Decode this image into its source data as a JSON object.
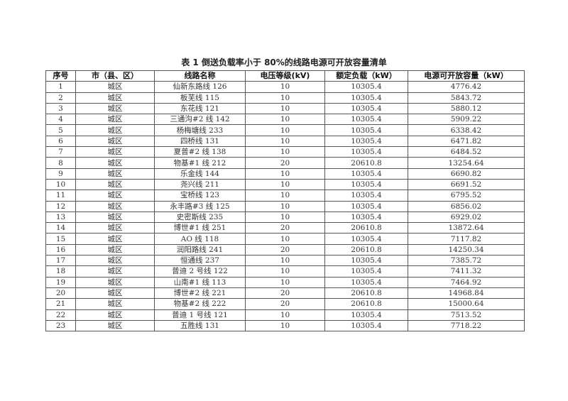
{
  "title": "表 1 倒送负载率小于 80%的线路电源可开放容量清单",
  "headers": [
    "序号",
    "市（县、区）",
    "线路名称",
    "电压等级(kV)",
    "额定负载（kW）",
    "电源可开放容量（kW）"
  ],
  "rows": [
    [
      "1",
      "城区",
      "仙新东路线 126",
      "10",
      "10305.4",
      "4776.42"
    ],
    [
      "2",
      "城区",
      "板芜线 115",
      "10",
      "10305.4",
      "5843.72"
    ],
    [
      "3",
      "城区",
      "东花线 121",
      "10",
      "10305.4",
      "5880.12"
    ],
    [
      "4",
      "城区",
      "三通沟#2 线 142",
      "10",
      "10305.4",
      "5909.22"
    ],
    [
      "5",
      "城区",
      "杨梅塘线 233",
      "10",
      "10305.4",
      "6338.42"
    ],
    [
      "6",
      "城区",
      "四桥线 131",
      "10",
      "10305.4",
      "6471.82"
    ],
    [
      "7",
      "城区",
      "夏普#2 线 138",
      "10",
      "10305.4",
      "6484.52"
    ],
    [
      "8",
      "城区",
      "物基#1 线 212",
      "20",
      "20610.8",
      "13254.64"
    ],
    [
      "9",
      "城区",
      "乐金线 144",
      "10",
      "10305.4",
      "6690.82"
    ],
    [
      "10",
      "城区",
      "尧兴线 211",
      "10",
      "10305.4",
      "6691.52"
    ],
    [
      "11",
      "城区",
      "宝桥线 123",
      "10",
      "10305.4",
      "6795.52"
    ],
    [
      "12",
      "城区",
      "永丰路#3 线 125",
      "10",
      "10305.4",
      "6856.02"
    ],
    [
      "13",
      "城区",
      "史密斯线 235",
      "10",
      "10305.4",
      "6929.02"
    ],
    [
      "14",
      "城区",
      "博世#1 线 251",
      "20",
      "20610.8",
      "13872.64"
    ],
    [
      "15",
      "城区",
      "AO 线 118",
      "10",
      "10305.4",
      "7117.82"
    ],
    [
      "16",
      "城区",
      "润阳路线 241",
      "20",
      "20610.8",
      "14250.34"
    ],
    [
      "17",
      "城区",
      "恒通线 237",
      "10",
      "10305.4",
      "7385.72"
    ],
    [
      "18",
      "城区",
      "普迪 2 号线 122",
      "10",
      "10305.4",
      "7411.32"
    ],
    [
      "19",
      "城区",
      "山南#1 线 113",
      "10",
      "10305.4",
      "7464.92"
    ],
    [
      "20",
      "城区",
      "博世#2 线 221",
      "20",
      "20610.8",
      "14968.84"
    ],
    [
      "21",
      "城区",
      "物基#2 线 222",
      "20",
      "20610.8",
      "15000.64"
    ],
    [
      "22",
      "城区",
      "普迪 1 号线 121",
      "10",
      "10305.4",
      "7513.52"
    ],
    [
      "23",
      "城区",
      "五胜线 131",
      "10",
      "10305.4",
      "7718.22"
    ]
  ]
}
